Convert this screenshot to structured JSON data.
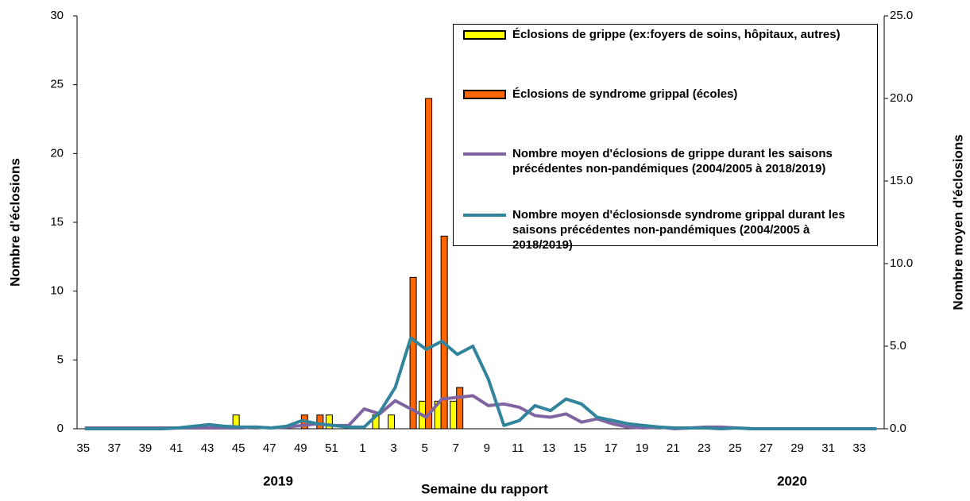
{
  "chart_data": {
    "type": "bar",
    "categories": [
      "35",
      null,
      "37",
      null,
      "39",
      null,
      "41",
      null,
      "43",
      null,
      "45",
      null,
      "47",
      null,
      "49",
      null,
      "51",
      null,
      "1",
      null,
      "3",
      null,
      "5",
      null,
      "7",
      null,
      "9",
      null,
      "11",
      null,
      "13",
      null,
      "15",
      null,
      "17",
      null,
      "19",
      null,
      "21",
      null,
      "23",
      null,
      "25",
      null,
      "27",
      null,
      "29",
      null,
      "31",
      null,
      "33",
      null
    ],
    "series": [
      {
        "name": "Éclosions de grippe (ex:foyers de soins, hôpitaux, autres)",
        "type": "bar",
        "color": "#ffff00",
        "values": [
          0,
          0,
          0,
          0,
          0,
          0,
          0,
          0,
          0,
          0,
          1,
          0,
          0,
          0,
          0,
          0,
          1,
          0,
          0,
          1,
          1,
          0,
          2,
          2,
          2,
          0,
          0,
          0,
          0,
          0,
          0,
          0,
          0,
          0,
          0,
          0,
          0,
          0,
          0,
          0,
          0,
          0,
          0,
          0,
          0,
          0,
          0,
          0,
          0,
          0,
          0,
          0
        ]
      },
      {
        "name": "Éclosions de syndrome grippal (écoles)",
        "type": "bar",
        "color": "#ff6600",
        "values": [
          0,
          0,
          0,
          0,
          0,
          0,
          0,
          0,
          0,
          0,
          0,
          0,
          0,
          0,
          1,
          1,
          0,
          0,
          0,
          0,
          0,
          11,
          24,
          14,
          3,
          0,
          0,
          0,
          0,
          0,
          0,
          0,
          0,
          0,
          0,
          0,
          0,
          0,
          0,
          0,
          0,
          0,
          0,
          0,
          0,
          0,
          0,
          0,
          0,
          0,
          0,
          0
        ]
      },
      {
        "name": "Nombre moyen d'éclosions de grippe durant les saisons précédentes non-pandémiques (2004/2005 à 2018/2019)",
        "type": "line",
        "axis": "y2",
        "color": "#8064a2",
        "values": [
          0.05,
          0.05,
          0.05,
          0.05,
          0.05,
          0.05,
          0.05,
          0.05,
          0.05,
          0.05,
          0.05,
          0.1,
          0.05,
          0.1,
          0.2,
          0.3,
          0.2,
          0.2,
          1.2,
          0.9,
          1.7,
          1.2,
          0.7,
          1.8,
          1.9,
          2.0,
          1.4,
          1.5,
          1.3,
          0.8,
          0.7,
          0.9,
          0.4,
          0.6,
          0.3,
          0.1,
          0.05,
          0.1,
          0,
          0.05,
          0.1,
          0.1,
          0.05,
          0,
          0,
          0,
          0,
          0,
          0,
          0,
          0,
          0
        ]
      },
      {
        "name": "Nombre moyen d'éclosionsde syndrome grippal durant les saisons précédentes non-pandémiques (2004/2005 à 2018/2019)",
        "type": "line",
        "axis": "y2",
        "color": "#31849b",
        "values": [
          0,
          0,
          0,
          0,
          0,
          0,
          0.05,
          0.15,
          0.25,
          0.15,
          0.1,
          0.1,
          0.05,
          0.15,
          0.5,
          0.3,
          0.2,
          0.1,
          0.1,
          1.0,
          2.5,
          5.5,
          4.8,
          5.3,
          4.5,
          5.0,
          3.0,
          0.2,
          0.5,
          1.4,
          1.1,
          1.8,
          1.5,
          0.7,
          0.5,
          0.3,
          0.2,
          0.1,
          0.05,
          0.05,
          0.05,
          0,
          0.05,
          0,
          0,
          0,
          0,
          0,
          0,
          0,
          0,
          0
        ]
      }
    ],
    "ylim": [
      0,
      30
    ],
    "yticks": [
      0,
      5,
      10,
      15,
      20,
      25,
      30
    ],
    "y2lim": [
      0,
      25
    ],
    "y2ticks": [
      {
        "value": 0,
        "label": "0.0"
      },
      {
        "value": 5,
        "label": "5.0"
      },
      {
        "value": 10,
        "label": "10.0"
      },
      {
        "value": 15,
        "label": "15.0"
      },
      {
        "value": 20,
        "label": "20.0"
      },
      {
        "value": 25,
        "label": "25.0"
      }
    ],
    "y_label": "Nombre d'éclosions",
    "y2_label": "Nombre moyen d'éclosions",
    "x_label": "Semaine du rapport",
    "annotations": [
      "2019",
      "2020"
    ]
  }
}
